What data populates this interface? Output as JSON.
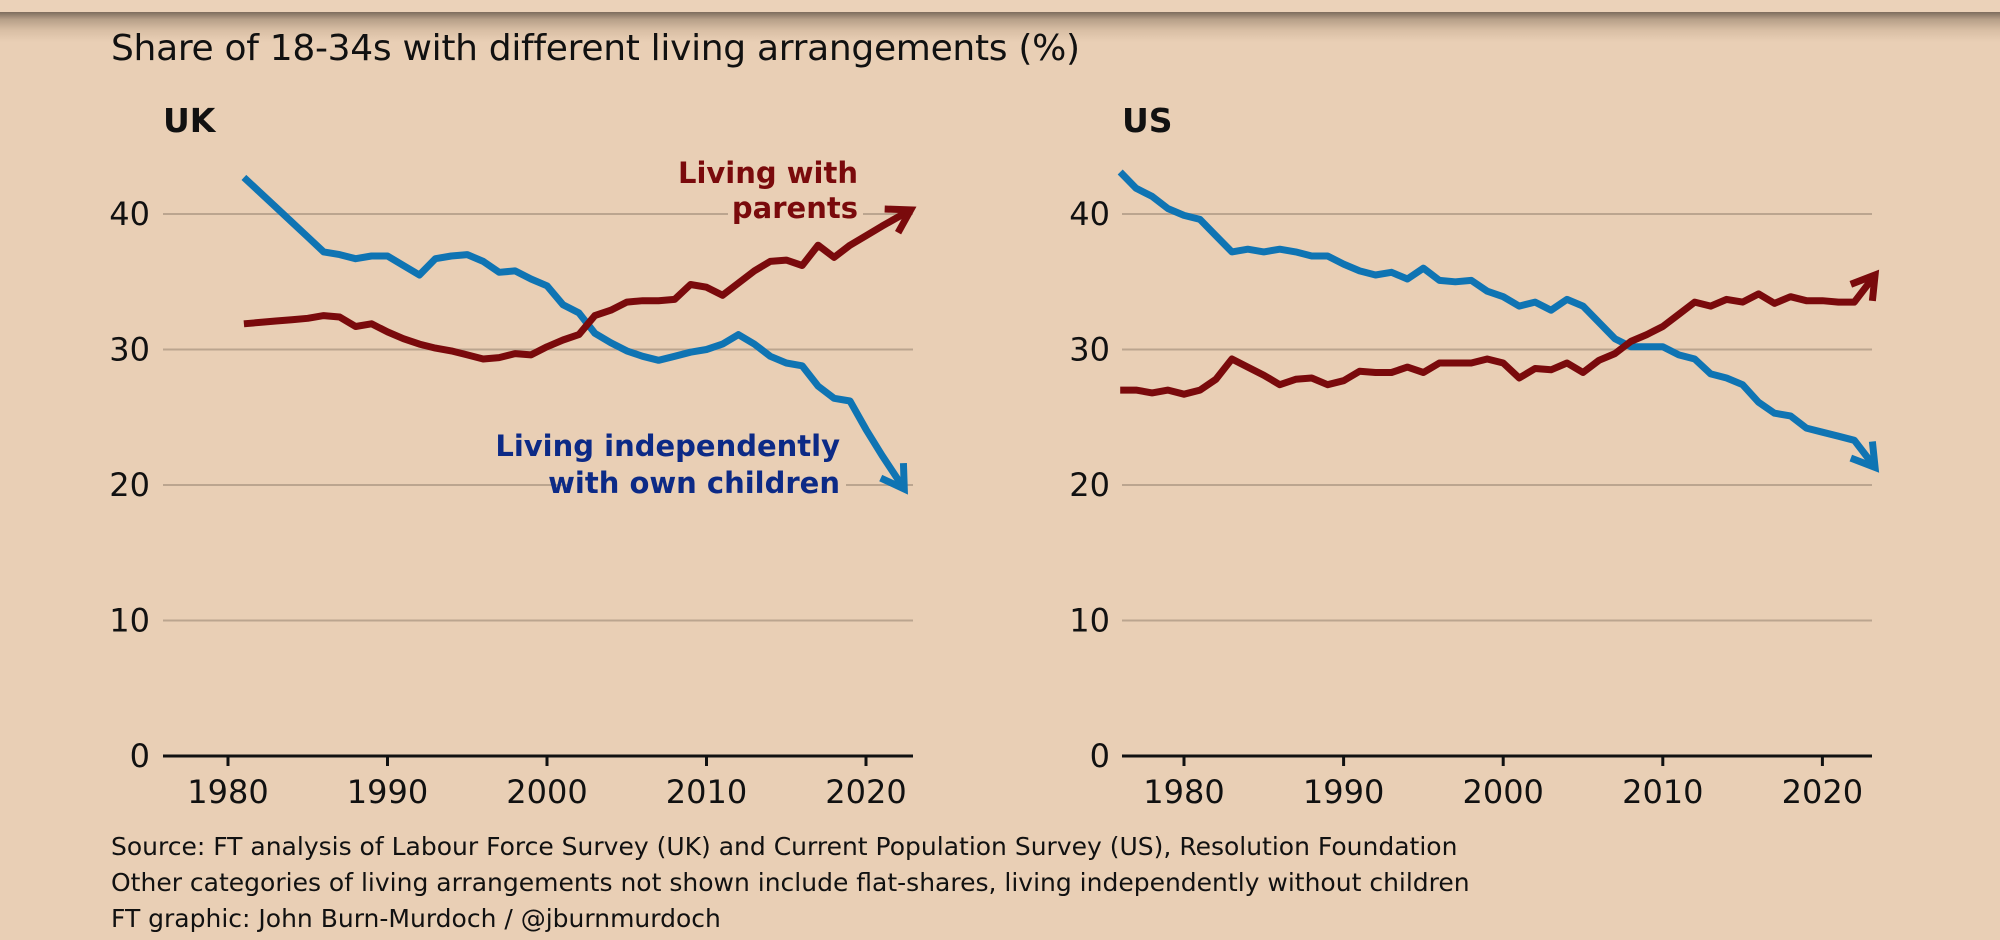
{
  "chart_data": {
    "type": "line",
    "title": "Share of 18-34s with different living arrangements (%)",
    "source_lines": [
      "Source: FT analysis of Labour Force Survey (UK) and Current Population Survey (US), Resolution Foundation",
      "Other categories of living arrangements not shown include flat-shares, living independently without children",
      "FT graphic: John Burn-Murdoch / @jburnmurdoch"
    ],
    "colors": {
      "with_parents": "#7a0a0c",
      "independent_children": "#0f74b3",
      "with_parents_label": "#7a0a0c",
      "independent_children_label": "#0c2a86"
    },
    "panels": [
      {
        "name": "UK",
        "xlabel": "",
        "ylabel": "",
        "xlim": [
          1976,
          2023
        ],
        "ylim": [
          0,
          45
        ],
        "xticks": [
          1980,
          1990,
          2000,
          2010,
          2020
        ],
        "yticks": [
          0,
          10,
          20,
          30,
          40
        ],
        "grid": true,
        "annotations": [
          {
            "series": "Living with parents",
            "lines": [
              "Living with",
              "parents"
            ]
          },
          {
            "series": "Living independently with own children",
            "lines": [
              "Living independently",
              "with own children"
            ]
          }
        ],
        "series": [
          {
            "name": "Living with parents",
            "key": "with_parents",
            "x": [
              1981,
              1982,
              1983,
              1984,
              1985,
              1986,
              1987,
              1988,
              1989,
              1990,
              1991,
              1992,
              1993,
              1994,
              1995,
              1996,
              1997,
              1998,
              1999,
              2000,
              2001,
              2002,
              2003,
              2004,
              2005,
              2006,
              2007,
              2008,
              2009,
              2010,
              2011,
              2012,
              2013,
              2014,
              2015,
              2016,
              2017,
              2018,
              2019,
              2020,
              2021,
              2022.8
            ],
            "values": [
              31.9,
              32.0,
              32.1,
              32.2,
              32.3,
              32.5,
              32.4,
              31.7,
              31.9,
              31.3,
              30.8,
              30.4,
              30.1,
              29.9,
              29.6,
              29.3,
              29.4,
              29.7,
              29.6,
              30.2,
              30.7,
              31.1,
              32.5,
              32.9,
              33.5,
              33.6,
              33.6,
              33.7,
              34.8,
              34.6,
              34.0,
              34.9,
              35.8,
              36.5,
              36.6,
              36.2,
              37.7,
              36.8,
              37.7,
              38.4,
              39.1,
              40.3
            ]
          },
          {
            "name": "Living independently with own children",
            "key": "independent_children",
            "x": [
              1981,
              1982,
              1983,
              1984,
              1985,
              1986,
              1987,
              1988,
              1989,
              1990,
              1991,
              1992,
              1993,
              1994,
              1995,
              1996,
              1997,
              1998,
              1999,
              2000,
              2001,
              2002,
              2003,
              2004,
              2005,
              2006,
              2007,
              2008,
              2009,
              2010,
              2011,
              2012,
              2013,
              2014,
              2015,
              2016,
              2017,
              2018,
              2019,
              2020,
              2021,
              2022.4
            ],
            "values": [
              42.7,
              41.6,
              40.5,
              39.4,
              38.3,
              37.2,
              37.0,
              36.7,
              36.9,
              36.9,
              36.2,
              35.5,
              36.7,
              36.9,
              37.0,
              36.5,
              35.7,
              35.8,
              35.2,
              34.7,
              33.3,
              32.7,
              31.2,
              30.5,
              29.9,
              29.5,
              29.2,
              29.5,
              29.8,
              30.0,
              30.4,
              31.1,
              30.4,
              29.5,
              29.0,
              28.8,
              27.3,
              26.4,
              26.2,
              24.1,
              22.2,
              19.7
            ]
          }
        ]
      },
      {
        "name": "US",
        "xlabel": "",
        "ylabel": "",
        "xlim": [
          1976,
          2023
        ],
        "ylim": [
          0,
          45
        ],
        "xticks": [
          1980,
          1990,
          2000,
          2010,
          2020
        ],
        "yticks": [
          0,
          10,
          20,
          30,
          40
        ],
        "grid": true,
        "series": [
          {
            "name": "Living with parents",
            "key": "with_parents",
            "x": [
              1976,
              1977,
              1978,
              1979,
              1980,
              1981,
              1982,
              1983,
              1984,
              1985,
              1986,
              1987,
              1988,
              1989,
              1990,
              1991,
              1992,
              1993,
              1994,
              1995,
              1996,
              1997,
              1998,
              1999,
              2000,
              2001,
              2002,
              2003,
              2004,
              2005,
              2006,
              2007,
              2008,
              2009,
              2010,
              2011,
              2012,
              2013,
              2014,
              2015,
              2016,
              2017,
              2018,
              2019,
              2020,
              2021,
              2022,
              2023.3
            ],
            "values": [
              27.0,
              27.0,
              26.8,
              27.0,
              26.7,
              27.0,
              27.8,
              29.3,
              28.7,
              28.1,
              27.4,
              27.8,
              27.9,
              27.4,
              27.7,
              28.4,
              28.3,
              28.3,
              28.7,
              28.3,
              29.0,
              29.0,
              29.0,
              29.3,
              29.0,
              27.9,
              28.6,
              28.5,
              29.0,
              28.3,
              29.2,
              29.7,
              30.6,
              31.1,
              31.7,
              32.6,
              33.5,
              33.2,
              33.7,
              33.5,
              34.1,
              33.4,
              33.9,
              33.6,
              33.6,
              33.5,
              33.5,
              35.5
            ]
          },
          {
            "name": "Living independently with own children",
            "key": "independent_children",
            "x": [
              1976,
              1977,
              1978,
              1979,
              1980,
              1981,
              1982,
              1983,
              1984,
              1985,
              1986,
              1987,
              1988,
              1989,
              1990,
              1991,
              1992,
              1993,
              1994,
              1995,
              1996,
              1997,
              1998,
              1999,
              2000,
              2001,
              2002,
              2003,
              2004,
              2005,
              2006,
              2007,
              2008,
              2009,
              2010,
              2011,
              2012,
              2013,
              2014,
              2015,
              2016,
              2017,
              2018,
              2019,
              2020,
              2021,
              2022,
              2023.3
            ],
            "values": [
              43.1,
              41.9,
              41.3,
              40.4,
              39.9,
              39.6,
              38.4,
              37.2,
              37.4,
              37.2,
              37.4,
              37.2,
              36.9,
              36.9,
              36.3,
              35.8,
              35.5,
              35.7,
              35.2,
              36.0,
              35.1,
              35.0,
              35.1,
              34.3,
              33.9,
              33.2,
              33.5,
              32.9,
              33.7,
              33.2,
              32.0,
              30.8,
              30.2,
              30.2,
              30.2,
              29.6,
              29.3,
              28.2,
              27.9,
              27.4,
              26.1,
              25.3,
              25.1,
              24.2,
              23.9,
              23.6,
              23.3,
              21.3
            ]
          }
        ]
      }
    ]
  }
}
